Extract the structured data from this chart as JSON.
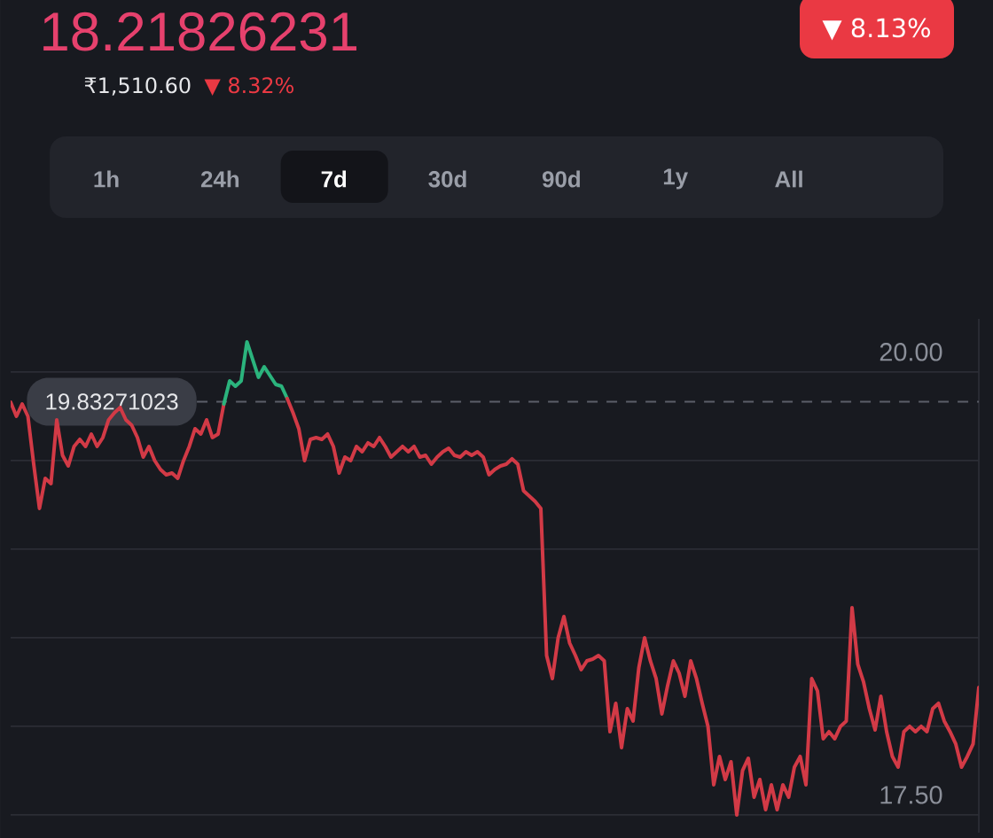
{
  "chart_data": {
    "type": "line",
    "title": "18.21826231",
    "subtitle": "₹1,510.60",
    "annotations": [
      "▼ 8.13%",
      "▼ 8.32%",
      "1h",
      "24h",
      "7d",
      "30d",
      "90d",
      "1y",
      "All"
    ],
    "categories": [
      null,
      null,
      null,
      null,
      null,
      null,
      null,
      null,
      null,
      null,
      null,
      null,
      null,
      null,
      null,
      null,
      null,
      null,
      null,
      null,
      null,
      null,
      null,
      null,
      null,
      null,
      null,
      null,
      null,
      null,
      null,
      null,
      null,
      null,
      null,
      null,
      null,
      null,
      null,
      null,
      null,
      null,
      null,
      null,
      null,
      null,
      null,
      null,
      null,
      null,
      null,
      null,
      null,
      null,
      null,
      null,
      null,
      null,
      null,
      null,
      null,
      null,
      null,
      null,
      null,
      null,
      null,
      null,
      null,
      null,
      null,
      null,
      null,
      null,
      null,
      null,
      null,
      null,
      null,
      null,
      null,
      null,
      null,
      null,
      null,
      null,
      null,
      null,
      null,
      null,
      null,
      null,
      null,
      null,
      null,
      null,
      null,
      null,
      null,
      null,
      null,
      null,
      null,
      null,
      null,
      null,
      null,
      null,
      null,
      null,
      null,
      null,
      null,
      null,
      null,
      null,
      null,
      null,
      null,
      null,
      null,
      null,
      null,
      null,
      null,
      null,
      null,
      null,
      null,
      null,
      null,
      null,
      null,
      null,
      null,
      null,
      null,
      null,
      null,
      null,
      null,
      null,
      null,
      null,
      null,
      null,
      null,
      null,
      null,
      null,
      null,
      null,
      null,
      null,
      null,
      null,
      null,
      null,
      null,
      null,
      null,
      null,
      null,
      null,
      null,
      null,
      null,
      null,
      null
    ],
    "series": [
      {
        "color": "#d23a46",
        "values": [
          19.83,
          19.75,
          19.82,
          19.75,
          19.48,
          19.23,
          19.4,
          19.37,
          19.73,
          19.53,
          19.47,
          19.58,
          19.62,
          19.58,
          19.65,
          19.58,
          19.63,
          19.73,
          19.77,
          19.8,
          19.73,
          19.7,
          19.63,
          19.52,
          19.58,
          19.5,
          19.45,
          19.42,
          19.43,
          19.4,
          19.5,
          19.58,
          19.68,
          19.65,
          19.73,
          19.63,
          19.65,
          19.82,
          null,
          null,
          null,
          null,
          null,
          null,
          null,
          null,
          null,
          null,
          null,
          null,
          null,
          null,
          null,
          null,
          null,
          null,
          null,
          null,
          null,
          null,
          null,
          null,
          null,
          null,
          null,
          null,
          null,
          null,
          null,
          null,
          null,
          null,
          null,
          null,
          null,
          null,
          null,
          null,
          null,
          null,
          null,
          null,
          null,
          null,
          null,
          null,
          null,
          null,
          null,
          null,
          null,
          null,
          null,
          null,
          null,
          null,
          null,
          null,
          null,
          null,
          null,
          null,
          null,
          null,
          null,
          null,
          null,
          null,
          null,
          null,
          null,
          null,
          null,
          null,
          null,
          null,
          null,
          null,
          null,
          null,
          null,
          null,
          null,
          null,
          null,
          null,
          null,
          null,
          null,
          null,
          null,
          null,
          null,
          null,
          null,
          null,
          null,
          null,
          null,
          null,
          null,
          null,
          null,
          null,
          null,
          null,
          null,
          null,
          null,
          null,
          null,
          null,
          null,
          null,
          null,
          null,
          null,
          null,
          null,
          null,
          null,
          null,
          null,
          null,
          null,
          null,
          null,
          null,
          null
        ]
      },
      {
        "color": "#2bb47d",
        "values": [
          null,
          null,
          null,
          null,
          null,
          null,
          null,
          null,
          null,
          null,
          null,
          null,
          null,
          null,
          null,
          null,
          null,
          null,
          null,
          null,
          null,
          null,
          null,
          null,
          null,
          null,
          null,
          null,
          null,
          null,
          null,
          null,
          null,
          null,
          null,
          null,
          null,
          19.82,
          19.95,
          19.92,
          19.95,
          20.17,
          20.07,
          19.97,
          20.03,
          19.98,
          19.93,
          19.92,
          19.85,
          null,
          null,
          null,
          null,
          null,
          null,
          null,
          null,
          null,
          null,
          null,
          null,
          null,
          null,
          null,
          null,
          null,
          null,
          null,
          null,
          null,
          null,
          null,
          null,
          null,
          null,
          null,
          null,
          null,
          null,
          null,
          null,
          null,
          null,
          null,
          null,
          null,
          null,
          null,
          null,
          null,
          null,
          null,
          null,
          null,
          null,
          null,
          null,
          null,
          null,
          null,
          null,
          null,
          null,
          null,
          null,
          null,
          null,
          null,
          null,
          null,
          null,
          null,
          null,
          null,
          null,
          null,
          null,
          null,
          null,
          null,
          null,
          null,
          null,
          null,
          null,
          null,
          null,
          null,
          null,
          null,
          null,
          null,
          null,
          null,
          null,
          null,
          null,
          null,
          null,
          null,
          null,
          null,
          null,
          null,
          null,
          null,
          null,
          null,
          null,
          null,
          null,
          null,
          null,
          null,
          null,
          null,
          null,
          null,
          null,
          null,
          null,
          null,
          null,
          null,
          null,
          null,
          null,
          null,
          null
        ]
      },
      {
        "color": "#d23a46",
        "values": [
          null,
          null,
          null,
          null,
          null,
          null,
          null,
          null,
          null,
          null,
          null,
          null,
          null,
          null,
          null,
          null,
          null,
          null,
          null,
          null,
          null,
          null,
          null,
          null,
          null,
          null,
          null,
          null,
          null,
          null,
          null,
          null,
          null,
          null,
          null,
          null,
          null,
          null,
          null,
          null,
          null,
          null,
          null,
          null,
          null,
          null,
          null,
          null,
          19.85,
          19.77,
          19.68,
          19.5,
          19.62,
          19.63,
          19.62,
          19.65,
          19.58,
          19.43,
          19.52,
          19.5,
          19.58,
          19.55,
          19.6,
          19.58,
          19.63,
          19.58,
          19.52,
          19.55,
          19.58,
          19.55,
          19.58,
          19.52,
          19.53,
          19.48,
          19.52,
          19.55,
          19.57,
          19.53,
          19.52,
          19.55,
          19.53,
          19.55,
          19.52,
          19.42,
          19.45,
          19.47,
          19.48,
          19.51,
          19.48,
          19.33,
          19.3,
          19.27,
          19.23,
          18.4,
          18.27,
          18.5,
          18.62,
          18.47,
          18.4,
          18.32,
          18.37,
          18.38,
          18.4,
          18.37,
          17.97,
          18.13,
          17.88,
          18.1,
          18.03,
          18.33,
          18.5,
          18.37,
          18.27,
          18.07,
          18.23,
          18.37,
          18.3,
          18.17,
          18.37,
          18.27,
          18.13,
          18.0,
          17.67,
          17.83,
          17.7,
          17.8,
          17.5,
          17.75,
          17.82,
          17.6,
          17.7,
          17.53,
          17.67,
          17.53,
          17.67,
          17.6,
          17.77,
          17.83,
          17.67,
          18.27,
          18.2,
          17.93,
          17.97,
          17.93,
          18.0,
          18.03,
          18.67,
          18.35,
          18.25,
          18.1,
          17.98,
          18.17,
          17.97,
          17.83,
          17.77,
          17.97,
          18.0,
          17.97,
          18.0,
          17.97,
          18.1,
          18.13,
          18.03,
          17.97,
          17.9,
          17.77,
          17.83,
          17.9,
          18.22
        ]
      }
    ],
    "ylim": [
      17.4,
      20.3
    ],
    "yticks": [
      {
        "value": 20,
        "label": "20.00"
      },
      {
        "value": 19.5,
        "label": null
      },
      {
        "value": 19,
        "label": null
      },
      {
        "value": 18.5,
        "label": null
      },
      {
        "value": 18,
        "label": null
      },
      {
        "value": 17.5,
        "label": "17.50"
      }
    ],
    "grid": "y",
    "tick_labels": "y",
    "ref_lines": [
      {
        "axis": "y",
        "value": 19.83271023,
        "label": "19.83271023",
        "line_style": "dashed",
        "color": "#5c5f69"
      }
    ]
  }
}
